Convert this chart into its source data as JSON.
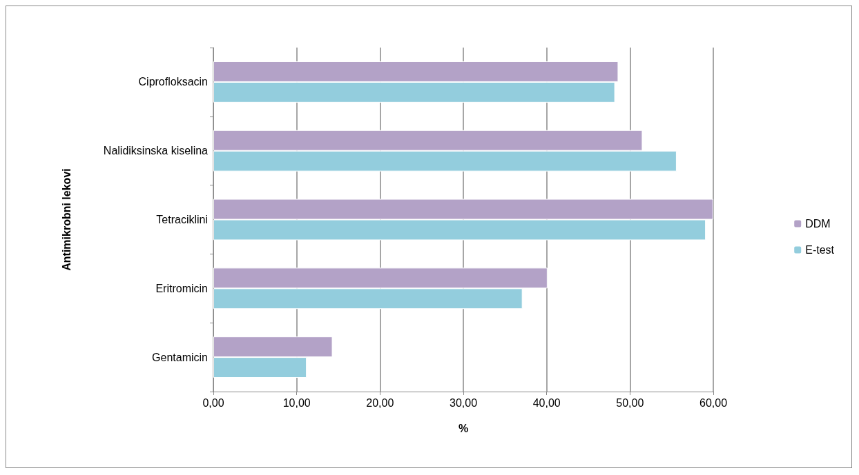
{
  "chart_data": {
    "type": "bar",
    "orientation": "horizontal",
    "xlabel": "%",
    "ylabel": "Antimikrobni lekovi",
    "categories": [
      "Ciprofloksacin",
      "Nalidiksinska kiselina",
      "Tetraciklini",
      "Eritromicin",
      "Gentamicin"
    ],
    "series": [
      {
        "name": "DDM",
        "color": "#b3a2c7",
        "values": [
          48.6,
          51.5,
          60.0,
          40.1,
          14.3
        ]
      },
      {
        "name": "E-test",
        "color": "#93cddd",
        "values": [
          48.2,
          55.6,
          59.1,
          37.1,
          11.2
        ]
      }
    ],
    "xlim": [
      0,
      60
    ],
    "xticks": [
      {
        "value": 0,
        "label": "0,00"
      },
      {
        "value": 10,
        "label": "10,00"
      },
      {
        "value": 20,
        "label": "20,00"
      },
      {
        "value": 30,
        "label": "30,00"
      },
      {
        "value": 40,
        "label": "40,00"
      },
      {
        "value": 50,
        "label": "50,00"
      },
      {
        "value": 60,
        "label": "60,00"
      }
    ],
    "grid": "x",
    "legend": "right"
  }
}
